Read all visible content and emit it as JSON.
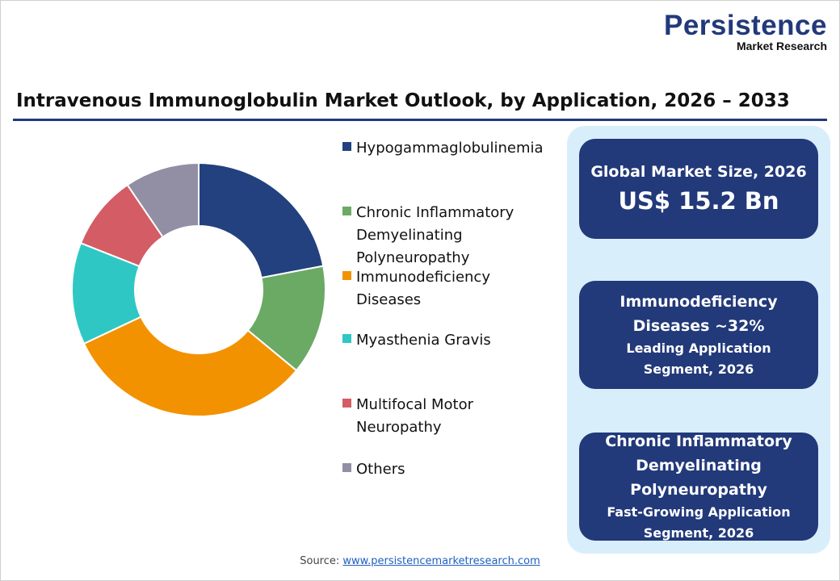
{
  "logo": {
    "line1": "Persistence",
    "line2": "Market Research"
  },
  "chart_data": {
    "type": "pie",
    "subtype": "donut",
    "title": "Intravenous Immunoglobulin Market Outlook, by Application, 2026 – 2033",
    "categories": [
      "Hypogammaglobulinemia",
      "Chronic Inflammatory Demyelinating Polyneuropathy",
      "Immunodeficiency Diseases",
      "Myasthenia Gravis",
      "Multifocal Motor Neuropathy",
      "Others"
    ],
    "legend_lines": [
      [
        "Hypogammaglobulinemia"
      ],
      [
        "Chronic Inflammatory",
        "Demyelinating",
        "Polyneuropathy"
      ],
      [
        "Immunodeficiency",
        "Diseases"
      ],
      [
        "Myasthenia Gravis"
      ],
      [
        "Multifocal Motor",
        "Neuropathy"
      ],
      [
        "Others"
      ]
    ],
    "values": [
      22,
      14,
      32,
      13,
      9.5,
      9.5
    ],
    "unit": "%",
    "colors": [
      "#22417e",
      "#6aaa64",
      "#f39200",
      "#2fc7c4",
      "#d45c64",
      "#928ea3"
    ],
    "legend_position": "right"
  },
  "cards": [
    {
      "line1": "Global Market Size, 2026",
      "big": "US$ 15.2 Bn"
    },
    {
      "line1": "Immunodeficiency",
      "line2": "Diseases ~32%",
      "sub1": "Leading Application",
      "sub2": "Segment, 2026"
    },
    {
      "line1": "Chronic Inflammatory",
      "line2": "Demyelinating",
      "line3": "Polyneuropathy",
      "sub1": "Fast-Growing Application",
      "sub2": "Segment, 2026"
    }
  ],
  "source": {
    "label": "Source:",
    "link": "www.persistencemarketresearch.com"
  }
}
